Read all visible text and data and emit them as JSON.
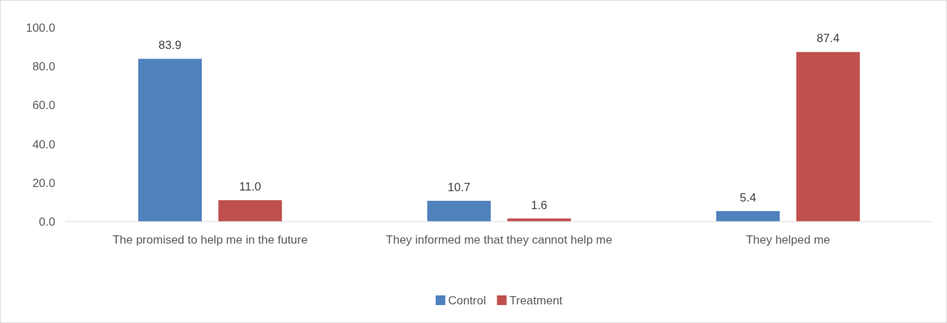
{
  "chart_data": {
    "type": "bar",
    "categories": [
      "The promised to help me in the future",
      "They informed me that they cannot help me",
      "They helped me"
    ],
    "series": [
      {
        "name": "Control",
        "color": "#4f81bd",
        "values": [
          83.9,
          10.7,
          5.4
        ],
        "value_labels": [
          "83.9",
          "10.7",
          "5.4"
        ]
      },
      {
        "name": "Treatment",
        "color": "#c0504d",
        "values": [
          11.0,
          1.6,
          87.4
        ],
        "value_labels": [
          "11.0",
          "1.6",
          "87.4"
        ]
      }
    ],
    "ylim": [
      0,
      100
    ],
    "yticks": [
      {
        "value": 0,
        "label": "0.0"
      },
      {
        "value": 20,
        "label": "20.0"
      },
      {
        "value": 40,
        "label": "40.0"
      },
      {
        "value": 60,
        "label": "60.0"
      },
      {
        "value": 80,
        "label": "80.0"
      },
      {
        "value": 100,
        "label": "100.0"
      }
    ],
    "grid": false,
    "legend": "bottom"
  }
}
